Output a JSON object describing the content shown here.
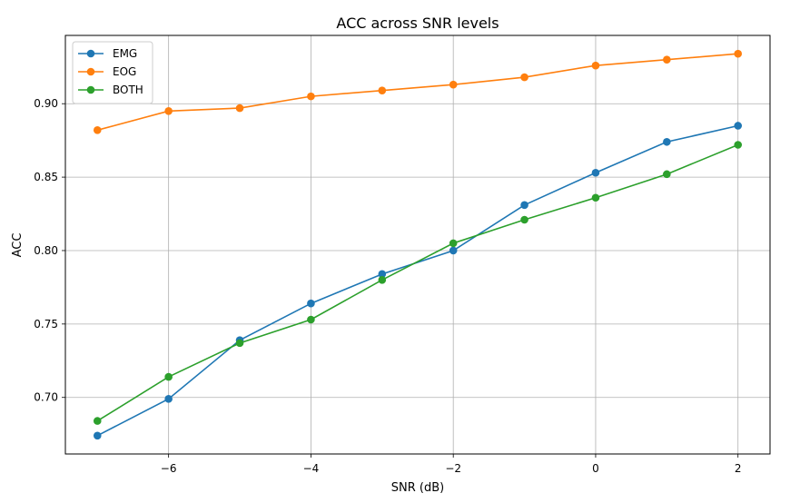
{
  "chart_data": {
    "type": "line",
    "title": "ACC across SNR levels",
    "xlabel": "SNR (dB)",
    "ylabel": "ACC",
    "x": [
      -7,
      -6,
      -5,
      -4,
      -3,
      -2,
      -1,
      0,
      1,
      2
    ],
    "xlim": [
      -7.45,
      2.45
    ],
    "ylim": [
      0.6615,
      0.9465
    ],
    "xticks": [
      -6,
      -4,
      -2,
      0,
      2
    ],
    "xtick_labels": [
      "−6",
      "−4",
      "−2",
      "0",
      "2"
    ],
    "yticks": [
      0.7,
      0.75,
      0.8,
      0.85,
      0.9
    ],
    "ytick_labels": [
      "0.70",
      "0.75",
      "0.80",
      "0.85",
      "0.90"
    ],
    "grid": true,
    "legend_position": "upper-left",
    "series": [
      {
        "name": "EMG",
        "color": "#1f77b4",
        "values": [
          0.674,
          0.699,
          0.739,
          0.764,
          0.784,
          0.8,
          0.831,
          0.853,
          0.874,
          0.885
        ]
      },
      {
        "name": "EOG",
        "color": "#ff7f0e",
        "values": [
          0.882,
          0.895,
          0.897,
          0.905,
          0.909,
          0.913,
          0.918,
          0.926,
          0.93,
          0.934
        ]
      },
      {
        "name": "BOTH",
        "color": "#2ca02c",
        "values": [
          0.684,
          0.714,
          0.737,
          0.753,
          0.78,
          0.805,
          0.821,
          0.836,
          0.852,
          0.872
        ]
      }
    ]
  }
}
